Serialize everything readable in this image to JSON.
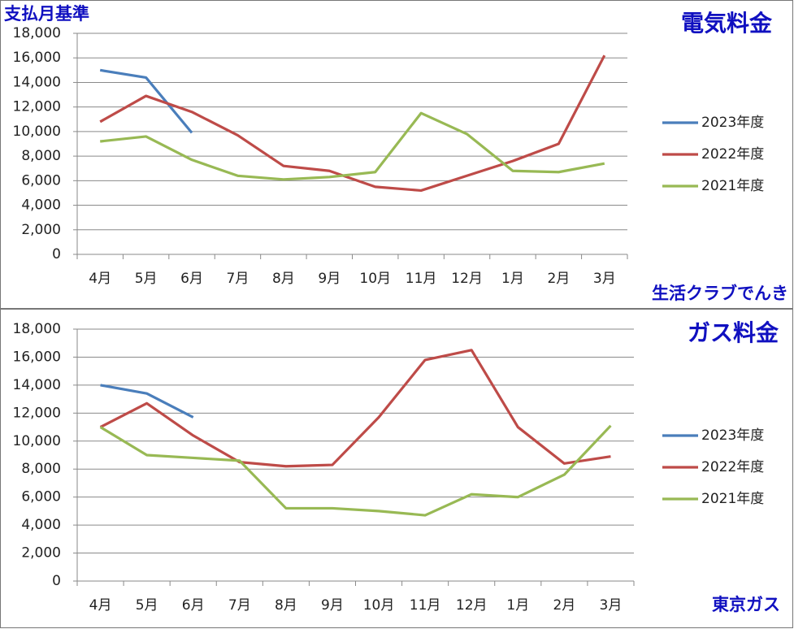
{
  "chart_data": [
    {
      "type": "line",
      "title": "電気料金",
      "subtitle": "支払月基準",
      "annotation": "生活クラブでんき",
      "categories": [
        "4月",
        "5月",
        "6月",
        "7月",
        "8月",
        "9月",
        "10月",
        "11月",
        "12月",
        "1月",
        "2月",
        "3月"
      ],
      "series": [
        {
          "name": "2023年度",
          "color": "#4a7ebb",
          "values": [
            15000,
            14400,
            9900,
            null,
            null,
            null,
            null,
            null,
            null,
            null,
            null,
            null
          ]
        },
        {
          "name": "2022年度",
          "color": "#be4b48",
          "values": [
            10800,
            12900,
            11600,
            9700,
            7200,
            6800,
            5500,
            5200,
            6400,
            7600,
            9000,
            16200
          ]
        },
        {
          "name": "2021年度",
          "color": "#98b954",
          "values": [
            9200,
            9600,
            7700,
            6400,
            6100,
            6300,
            6700,
            11500,
            9800,
            6800,
            6700,
            7400
          ]
        }
      ],
      "ylim": [
        0,
        18000
      ],
      "yticks": [
        0,
        {
          "value": 2000,
          "label": "2,000"
        },
        {
          "value": 4000,
          "label": "4,000"
        },
        {
          "value": 6000,
          "label": "6,000"
        },
        {
          "value": 8000,
          "label": "8,000"
        },
        {
          "value": 10000,
          "label": "10,000"
        },
        {
          "value": 12000,
          "label": "12,000"
        },
        {
          "value": 14000,
          "label": "14,000"
        },
        {
          "value": 16000,
          "label": "16,000"
        },
        {
          "value": 18000,
          "label": "18,000"
        }
      ],
      "grid": true,
      "legend": "right"
    },
    {
      "type": "line",
      "title": "ガス料金",
      "annotation": "東京ガス",
      "categories": [
        "4月",
        "5月",
        "6月",
        "7月",
        "8月",
        "9月",
        "10月",
        "11月",
        "12月",
        "1月",
        "2月",
        "3月"
      ],
      "series": [
        {
          "name": "2023年度",
          "color": "#4a7ebb",
          "values": [
            14000,
            13400,
            11700,
            null,
            null,
            null,
            null,
            null,
            null,
            null,
            null,
            null
          ]
        },
        {
          "name": "2022年度",
          "color": "#be4b48",
          "values": [
            11000,
            12700,
            10400,
            8500,
            8200,
            8300,
            11700,
            15800,
            16500,
            11000,
            8400,
            8900
          ]
        },
        {
          "name": "2021年度",
          "color": "#98b954",
          "values": [
            11000,
            9000,
            8800,
            8600,
            5200,
            5200,
            5000,
            4700,
            6200,
            6000,
            7600,
            11100
          ]
        }
      ],
      "ylim": [
        0,
        18000
      ],
      "yticks": [
        0,
        {
          "value": 2000,
          "label": "2,000"
        },
        {
          "value": 4000,
          "label": "4,000"
        },
        {
          "value": 6000,
          "label": "6,000"
        },
        {
          "value": 8000,
          "label": "8,000"
        },
        {
          "value": 10000,
          "label": "10,000"
        },
        {
          "value": 12000,
          "label": "12,000"
        },
        {
          "value": 14000,
          "label": "14,000"
        },
        {
          "value": 16000,
          "label": "16,000"
        },
        {
          "value": 18000,
          "label": "18,000"
        }
      ],
      "grid": true,
      "legend": "right"
    }
  ]
}
